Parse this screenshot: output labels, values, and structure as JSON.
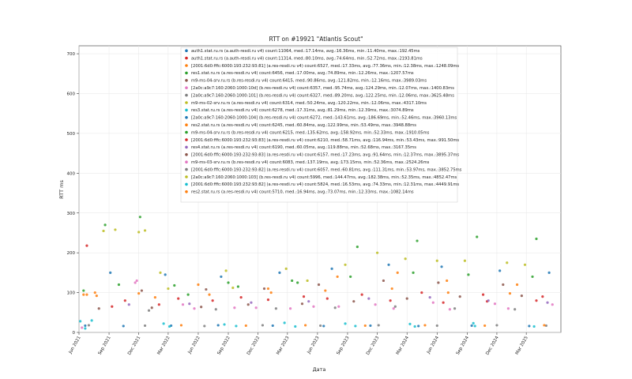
{
  "chart_data": {
    "type": "scatter",
    "title": "RTT on #19921 \"Atlantis Scout\"",
    "xlabel": "Дата",
    "ylabel": "RTT ms",
    "ylim": [
      0,
      720
    ],
    "yticks": [
      0,
      100,
      200,
      300,
      400,
      500,
      600,
      700
    ],
    "x_start": "2021-06-01",
    "x_end": "2025-06-15",
    "xticks": [
      {
        "date": "2021-06-01",
        "label": "Jun 2021"
      },
      {
        "date": "2021-09-01",
        "label": "Sep 2021"
      },
      {
        "date": "2021-12-01",
        "label": "Dec 2021"
      },
      {
        "date": "2022-03-01",
        "label": "Mar 2022"
      },
      {
        "date": "2022-06-01",
        "label": "Jun 2022"
      },
      {
        "date": "2022-09-01",
        "label": "Sep 2022"
      },
      {
        "date": "2022-12-01",
        "label": "Dec 2022"
      },
      {
        "date": "2023-03-01",
        "label": "Mar 2023"
      },
      {
        "date": "2023-06-01",
        "label": "Jun 2023"
      },
      {
        "date": "2023-09-01",
        "label": "Sep 2023"
      },
      {
        "date": "2023-12-01",
        "label": "Dec 2023"
      },
      {
        "date": "2024-03-01",
        "label": "Mar 2024"
      },
      {
        "date": "2024-06-01",
        "label": "Jun 2024"
      },
      {
        "date": "2024-09-01",
        "label": "Sep 2024"
      },
      {
        "date": "2024-12-01",
        "label": "Dec 2024"
      },
      {
        "date": "2025-03-01",
        "label": "Mar 2025"
      }
    ],
    "grid": true,
    "legend_position": "top-center",
    "series": [
      {
        "name": "auth1.stat.ru.rs (a.auth-resdi.ru v4) count:11064, med.:17.14ms, avg.:16.36ms, min.:11.40ms, max.:192.45ms",
        "color": "#1f77b4",
        "points": [
          [
            "2021-06-20",
            17
          ],
          [
            "2021-10-15",
            16
          ],
          [
            "2022-03-10",
            17
          ],
          [
            "2022-08-01",
            18
          ],
          [
            "2023-01-15",
            17
          ],
          [
            "2023-06-20",
            16
          ],
          [
            "2023-11-10",
            17
          ],
          [
            "2024-04-05",
            16
          ],
          [
            "2024-09-15",
            17
          ],
          [
            "2025-03-10",
            16
          ]
        ]
      },
      {
        "name": "auth1.stat.ru.rs (a.auth-resdi.ru v4) count:11314, med.:80.10ms, avg.:74.64ms, min.:52.72ms, max.:2193.81ms",
        "color": "#d62728",
        "points": [
          [
            "2021-06-25",
            218
          ],
          [
            "2021-09-10",
            65
          ],
          [
            "2022-02-01",
            70
          ],
          [
            "2022-07-15",
            80
          ],
          [
            "2023-01-01",
            82
          ],
          [
            "2023-07-01",
            85
          ],
          [
            "2024-01-10",
            80
          ],
          [
            "2024-06-20",
            75
          ],
          [
            "2024-11-01",
            78
          ],
          [
            "2025-04-01",
            80
          ]
        ]
      },
      {
        "name": "[2001:6d0:fffc:6000:193:232:93:81] (a.res-resdi.ru v4) count:6527, med.:17.33ms, avg.:77.36ms, min.:12.38ms, max.:1248.09ms",
        "color": "#ff7f0e",
        "points": [
          [
            "2021-06-15",
            95
          ],
          [
            "2021-07-20",
            100
          ],
          [
            "2021-12-01",
            98
          ],
          [
            "2022-06-01",
            120
          ],
          [
            "2023-01-01",
            110
          ],
          [
            "2023-08-01",
            140
          ],
          [
            "2024-02-01",
            150
          ],
          [
            "2024-07-01",
            130
          ],
          [
            "2025-02-01",
            120
          ]
        ]
      },
      {
        "name": "res1.stat.ru.rs (a.res-resdi.ru v4) count:6456, med.:17.00ms, avg.:74.89ms, min.:12.26ms, max.:1207.57ms",
        "color": "#2ca02c",
        "points": [
          [
            "2021-06-15",
            105
          ],
          [
            "2021-08-20",
            270
          ],
          [
            "2021-12-05",
            290
          ],
          [
            "2022-05-01",
            95
          ],
          [
            "2022-10-01",
            115
          ],
          [
            "2023-04-01",
            125
          ],
          [
            "2023-10-01",
            215
          ],
          [
            "2024-04-01",
            230
          ],
          [
            "2024-10-01",
            240
          ],
          [
            "2025-04-01",
            235
          ]
        ]
      },
      {
        "name": "m9-ms-04-srv.ru.rs (b.res-resdi.ru v4) count:6415, med.:90.86ms, avg.:121.82ms, min.:12.16ms, max.:3989.03ms",
        "color": "#8c564b",
        "points": [
          [
            "2021-08-01",
            60
          ],
          [
            "2022-01-10",
            62
          ],
          [
            "2022-06-10",
            64
          ],
          [
            "2022-11-01",
            70
          ],
          [
            "2023-04-15",
            72
          ],
          [
            "2023-09-20",
            78
          ],
          [
            "2024-03-01",
            85
          ],
          [
            "2024-08-10",
            90
          ],
          [
            "2025-02-15",
            92
          ]
        ]
      },
      {
        "name": "[2a0c:a9c7:160:2060:1000:10d] (b.res-resdi.ru v4) count:6357, med.:95.74ms, avg.:124.29ms, min.:12.07ms, max.:1400.83ms",
        "color": "#e377c2",
        "points": [
          [
            "2021-06-10",
            12
          ],
          [
            "2021-11-20",
            125
          ],
          [
            "2022-04-15",
            70
          ],
          [
            "2022-09-20",
            62
          ],
          [
            "2023-03-10",
            60
          ],
          [
            "2023-08-05",
            65
          ],
          [
            "2024-01-20",
            60
          ],
          [
            "2024-07-10",
            58
          ],
          [
            "2025-01-05",
            60
          ]
        ]
      },
      {
        "name": "[2a0c:a9c7:160:2060:1000:101] (b.res-resdi.ru v4) count:6327, med.:89.20ms, avg.:122.25ms, min.:12.06ms, max.:3625.48ms",
        "color": "#7f7f7f",
        "points": [
          [
            "2021-07-01",
            18
          ],
          [
            "2021-12-20",
            17
          ],
          [
            "2022-06-20",
            16
          ],
          [
            "2022-12-15",
            18
          ],
          [
            "2023-06-10",
            17
          ],
          [
            "2023-12-05",
            18
          ],
          [
            "2024-06-01",
            17
          ],
          [
            "2024-12-01",
            18
          ],
          [
            "2025-05-01",
            17
          ]
        ]
      },
      {
        "name": "m9-ms-02-srv.ru.rs (a.res-resdi.ru v4) count:6314, med.:50.24ms, avg.:120.22ms, min.:12.06ms, max.:4317.10ms",
        "color": "#bcbd22",
        "points": [
          [
            "2021-08-15",
            255
          ],
          [
            "2021-09-20",
            258
          ],
          [
            "2021-12-01",
            252
          ],
          [
            "2021-12-20",
            256
          ],
          [
            "2022-03-01",
            110
          ],
          [
            "2022-09-15",
            112
          ],
          [
            "2023-05-01",
            130
          ],
          [
            "2023-12-01",
            200
          ],
          [
            "2024-06-01",
            180
          ],
          [
            "2025-01-01",
            175
          ]
        ]
      },
      {
        "name": "res3.stat.ru.rs (a.res-resdi.ru v4) count:6278, med.:17.31ms, avg.:81.29ms, min.:12.39ms, max.:3074.89ms",
        "color": "#17becf",
        "points": [
          [
            "2021-06-05",
            28
          ],
          [
            "2021-06-20",
            10
          ],
          [
            "2021-07-10",
            30
          ],
          [
            "2022-02-15",
            22
          ],
          [
            "2022-08-20",
            20
          ],
          [
            "2023-02-20",
            24
          ],
          [
            "2023-08-25",
            22
          ],
          [
            "2024-03-10",
            21
          ],
          [
            "2024-09-20",
            23
          ]
        ]
      },
      {
        "name": "[2a0c:a9c7:160:2060:1000:104] (b.res-resdi.ru v4) count:6272, med.:143.61ms, avg.:186.69ms, min.:52.46ms, max.:3960.13ms",
        "color": "#1f77b4",
        "points": [
          [
            "2021-09-05",
            150
          ],
          [
            "2022-02-20",
            145
          ],
          [
            "2022-08-10",
            140
          ],
          [
            "2023-02-05",
            150
          ],
          [
            "2023-07-15",
            160
          ],
          [
            "2024-01-05",
            170
          ],
          [
            "2024-06-15",
            165
          ],
          [
            "2024-12-10",
            155
          ],
          [
            "2025-05-10",
            150
          ]
        ]
      },
      {
        "name": "res2.stat.ru.rs (a.res-resdi.ru v4) count:6245, med.:60.84ms, avg.:122.99ms, min.:53.49ms, max.:3948.88ms",
        "color": "#ff7f0e",
        "points": [
          [
            "2021-06-25",
            95
          ],
          [
            "2021-07-25",
            92
          ],
          [
            "2022-01-20",
            88
          ],
          [
            "2022-07-05",
            95
          ],
          [
            "2023-01-10",
            100
          ],
          [
            "2023-06-25",
            105
          ],
          [
            "2024-01-15",
            110
          ],
          [
            "2024-07-05",
            100
          ],
          [
            "2025-01-10",
            98
          ]
        ]
      },
      {
        "name": "m9-ms-04-srv.ru.rs (b.res-resdi.ru v4) count:6215, med.:135.62ms, avg.:158.92ms, min.:52.33ms, max.:1910.05ms",
        "color": "#2ca02c",
        "points": [
          [
            "2021-10-01",
            120
          ],
          [
            "2022-03-20",
            118
          ],
          [
            "2022-09-01",
            125
          ],
          [
            "2023-03-15",
            130
          ],
          [
            "2023-09-10",
            140
          ],
          [
            "2024-03-20",
            150
          ],
          [
            "2024-09-05",
            145
          ],
          [
            "2025-03-20",
            140
          ]
        ]
      },
      {
        "name": "[2001:6d0:fffc:6000:193:232:93:83] (a.res-resdi.ru v4) count:6210, med.:58.71ms, avg.:116.94ms, min.:53.43ms, max.:991.50ms",
        "color": "#d62728",
        "points": [
          [
            "2021-10-20",
            80
          ],
          [
            "2022-04-01",
            85
          ],
          [
            "2022-10-10",
            88
          ],
          [
            "2023-04-20",
            90
          ],
          [
            "2023-10-15",
            95
          ],
          [
            "2024-04-15",
            100
          ],
          [
            "2024-10-20",
            95
          ],
          [
            "2025-04-20",
            90
          ]
        ]
      },
      {
        "name": "res4.stat.ru.rs (a.res-resdi.ru v4) count:6190, med.:60.05ms, avg.:119.88ms, min.:52.68ms, max.:3167.35ms",
        "color": "#9467bd",
        "points": [
          [
            "2021-11-01",
            70
          ],
          [
            "2022-05-05",
            72
          ],
          [
            "2022-11-10",
            75
          ],
          [
            "2023-05-05",
            78
          ],
          [
            "2023-11-05",
            85
          ],
          [
            "2024-05-10",
            88
          ],
          [
            "2024-11-05",
            80
          ],
          [
            "2025-05-05",
            75
          ]
        ]
      },
      {
        "name": "[2001:6d0:fffc:6000:193:232:93:83] (a.res-resdi.ru v4) count:6157, med.:17.23ms, avg.:91.64ms, min.:12.37ms, max.:3895.37ms",
        "color": "#8c564b",
        "points": [
          [
            "2021-12-10",
            105
          ],
          [
            "2022-06-25",
            108
          ],
          [
            "2022-12-20",
            110
          ],
          [
            "2023-06-05",
            120
          ],
          [
            "2023-12-20",
            130
          ],
          [
            "2024-06-05",
            125
          ],
          [
            "2024-12-20",
            120
          ]
        ]
      },
      {
        "name": "m9-ms-03-srv.ru.rs (b.res-resdi.ru v4) count:6083, med.:137.19ms, avg.:173.15ms, min.:52.36ms, max.:2524.26ms",
        "color": "#e377c2",
        "points": [
          [
            "2021-11-25",
            130
          ],
          [
            "2022-05-20",
            60
          ],
          [
            "2022-11-25",
            62
          ],
          [
            "2023-05-20",
            65
          ],
          [
            "2023-11-25",
            70
          ],
          [
            "2024-05-20",
            75
          ],
          [
            "2024-11-25",
            72
          ],
          [
            "2025-05-20",
            70
          ]
        ]
      },
      {
        "name": "[2001:6d0:fffc:6000:193:232:93:82] (a.res-resdi.ru v4) count:6057, med.:60.81ms, avg.:111.31ms, min.:53.97ms, max.:3852.75ms",
        "color": "#7f7f7f",
        "points": [
          [
            "2022-01-01",
            55
          ],
          [
            "2022-07-25",
            58
          ],
          [
            "2023-01-25",
            60
          ],
          [
            "2023-07-25",
            62
          ],
          [
            "2024-01-25",
            65
          ],
          [
            "2024-07-25",
            60
          ],
          [
            "2025-01-25",
            58
          ]
        ]
      },
      {
        "name": "[2a0c:a9c7:160:2060:1000:103] (b.res-resdi.ru v4) count:5996, med.:144.47ms, avg.:182.38ms, min.:52.35ms, max.:4852.47ms",
        "color": "#bcbd22",
        "points": [
          [
            "2022-02-05",
            150
          ],
          [
            "2022-08-25",
            155
          ],
          [
            "2023-02-25",
            160
          ],
          [
            "2023-08-25",
            170
          ],
          [
            "2024-02-25",
            185
          ],
          [
            "2024-08-25",
            180
          ],
          [
            "2025-02-25",
            170
          ]
        ]
      },
      {
        "name": "[2001:6d0:fffc:6000:193:232:93:82] (a.res-resdi.ru v4) count:5824, med.:16.53ms, avg.:74.33ms, min.:12.31ms, max.:4449.91ms",
        "color": "#17becf",
        "points": [
          [
            "2022-03-05",
            15
          ],
          [
            "2022-09-25",
            16
          ],
          [
            "2023-03-25",
            15
          ],
          [
            "2023-09-25",
            16
          ],
          [
            "2024-03-25",
            15
          ],
          [
            "2024-09-25",
            16
          ],
          [
            "2025-03-25",
            15
          ]
        ]
      },
      {
        "name": "res2.stat.ru.rs (a.res-resdi.ru v4) count:5710, med.:16.94ms, avg.:73.07ms, min.:12.33ms, max.:1082.14ms",
        "color": "#ff7f0e",
        "points": [
          [
            "2022-04-10",
            18
          ],
          [
            "2022-10-25",
            17
          ],
          [
            "2023-04-25",
            18
          ],
          [
            "2023-10-25",
            17
          ],
          [
            "2024-04-25",
            18
          ],
          [
            "2024-10-25",
            17
          ],
          [
            "2025-04-25",
            18
          ]
        ]
      }
    ]
  }
}
